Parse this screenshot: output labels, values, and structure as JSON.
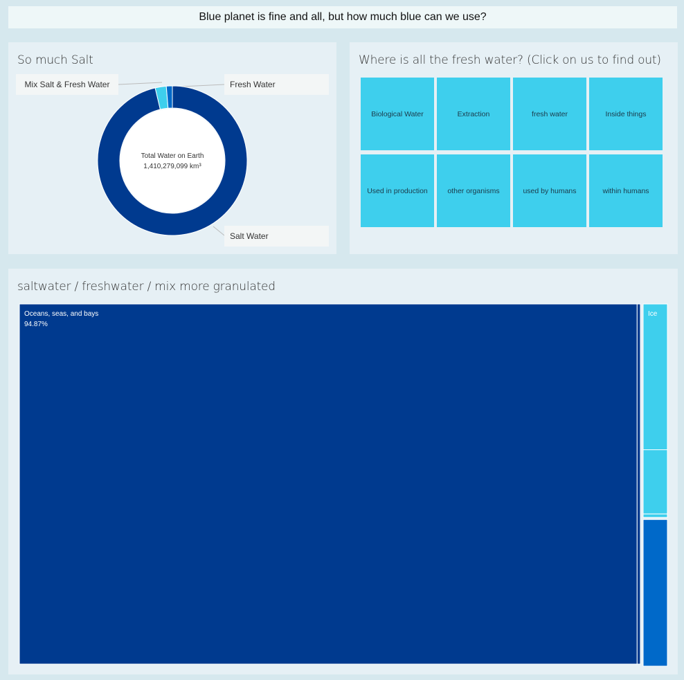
{
  "dashboard": {
    "title": "Blue planet is fine and all, but how much blue can we use?"
  },
  "colors": {
    "dark_blue": "#003a8f",
    "mid_blue": "#0069c9",
    "light_blue": "#3ecfed",
    "panel_bg": "#e6f0f5"
  },
  "donut_panel": {
    "title": "So much Salt",
    "center_label": "Total Water on Earth",
    "center_value": "1,410,279,099 km³"
  },
  "tiles_panel": {
    "title": "Where is all the fresh water? (Click on us to find out)",
    "tiles": [
      "Biological Water",
      "Extraction",
      "fresh water",
      "Inside things",
      "Used in production",
      "other organisms",
      "used by humans",
      "within humans"
    ]
  },
  "tree_panel": {
    "title": "saltwater / freshwater / mix more granulated"
  },
  "chart_data": [
    {
      "type": "pie",
      "subtype": "donut",
      "title": "So much Salt",
      "categories": [
        "Salt Water",
        "Mix Salt & Fresh Water",
        "Fresh Water"
      ],
      "values": [
        96.3,
        2.4,
        1.3
      ],
      "colors": [
        "#003a8f",
        "#3ecfed",
        "#0069c9"
      ],
      "start_angle_deg": 0,
      "legend": "labels-outside"
    },
    {
      "type": "treemap",
      "title": "saltwater / freshwater / mix more granulated",
      "items": [
        {
          "group": "saltwater",
          "name": "Oceans, seas, and bays",
          "value": 94.87,
          "label": "94.87%",
          "color": "#003a8f"
        },
        {
          "group": "saltwater",
          "name": "",
          "value": 0.5,
          "color": "#003a8f"
        },
        {
          "group": "mix",
          "name": "Ice",
          "value": 1.68,
          "color": "#3ecfed"
        },
        {
          "group": "mix",
          "name": "",
          "value": 0.74,
          "color": "#3ecfed"
        },
        {
          "group": "mix",
          "name": "",
          "value": 0.04,
          "color": "#3ecfed"
        },
        {
          "group": "freshwater",
          "name": "",
          "value": 1.69,
          "color": "#0069c9"
        }
      ]
    }
  ]
}
